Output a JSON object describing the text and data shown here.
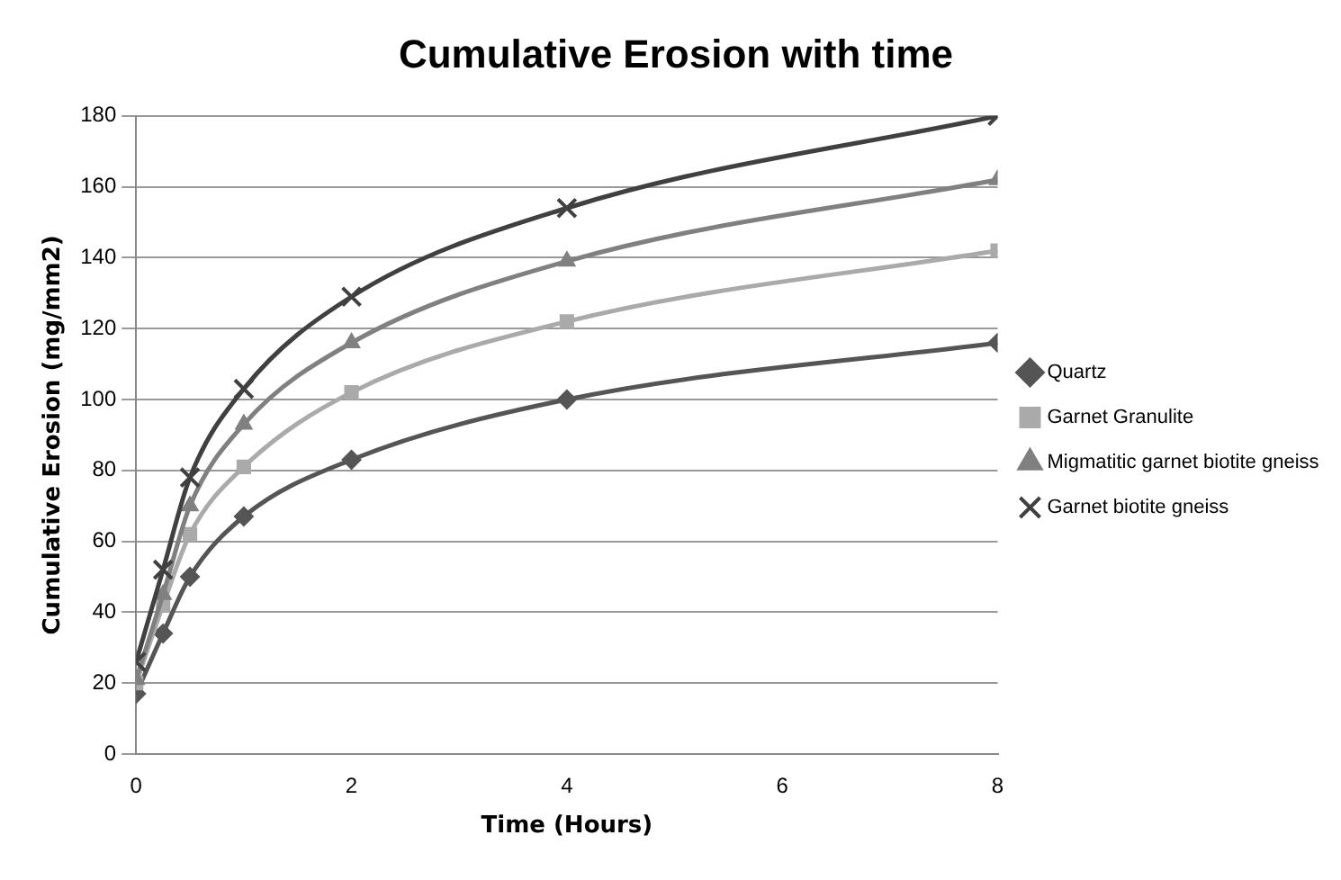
{
  "chart_data": {
    "type": "line",
    "title": "Cumulative Erosion with time",
    "xlabel": "Time (Hours)",
    "ylabel": "Cumulative Erosion (mg/mm2)",
    "x": [
      0,
      0.25,
      0.5,
      1,
      2,
      4,
      8
    ],
    "series": [
      {
        "name": "Quartz",
        "color": "#555555",
        "marker": "diamond",
        "values": [
          17,
          34,
          50,
          67,
          83,
          100,
          116
        ]
      },
      {
        "name": "Garnet Granulite",
        "color": "#aaaaaa",
        "marker": "square",
        "values": [
          20,
          42,
          62,
          81,
          102,
          122,
          142
        ]
      },
      {
        "name": "Migmatitic garnet biotite gneiss",
        "color": "#808080",
        "marker": "triangle",
        "values": [
          21,
          45,
          70,
          93,
          116,
          139,
          162
        ]
      },
      {
        "name": "Garnet biotite gneiss",
        "color": "#404040",
        "marker": "cross",
        "values": [
          26,
          52,
          78,
          103,
          129,
          154,
          180
        ]
      }
    ],
    "xlim": [
      0,
      8
    ],
    "xticks": [
      0,
      2,
      4,
      6,
      8
    ],
    "ylim": [
      0,
      180
    ],
    "yticks": [
      0,
      20,
      40,
      60,
      80,
      100,
      120,
      140,
      160,
      180
    ],
    "grid": "y",
    "legend": "right",
    "line_style": "solid"
  }
}
